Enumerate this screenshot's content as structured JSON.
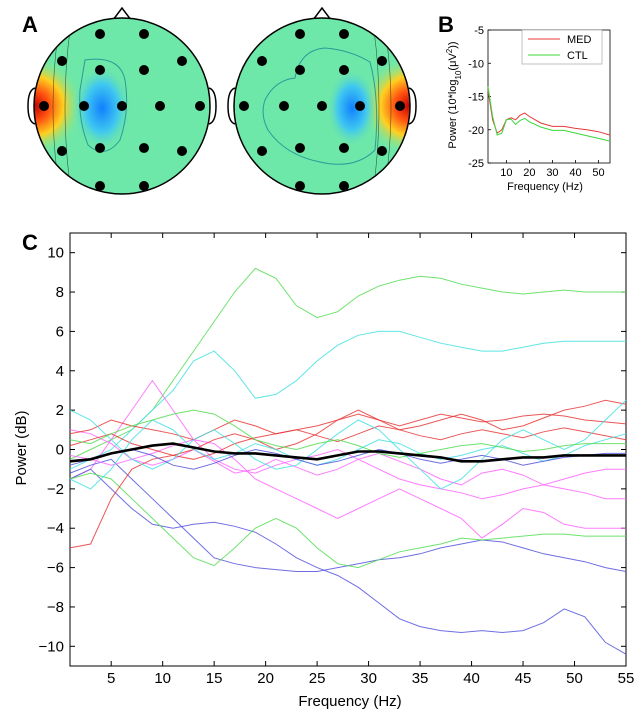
{
  "panels": {
    "A": "A",
    "B": "B",
    "C": "C"
  },
  "colors": {
    "med": "#e8393a",
    "ctl": "#38d838",
    "mean": "#000000",
    "topo_bg": "#6ee8a8"
  },
  "chart_data": [
    {
      "panel": "B",
      "type": "line",
      "xlabel": "Frequency (Hz)",
      "ylabel": "Power (10*log10(μV²))",
      "ylabel_parts": {
        "pre": "Power (10*log",
        "sub": "10",
        "mid": "(μV",
        "sup": "2",
        "post": "))"
      },
      "xlim": [
        2,
        55
      ],
      "ylim": [
        -25,
        -5
      ],
      "xticks": [
        10,
        20,
        30,
        40,
        50
      ],
      "yticks": [
        -5,
        -10,
        -15,
        -20,
        -25
      ],
      "legend_position": "top-right",
      "series": [
        {
          "name": "MED",
          "color": "#e8393a",
          "x": [
            2,
            4,
            6,
            8,
            10,
            12,
            14,
            16,
            18,
            20,
            25,
            30,
            35,
            40,
            45,
            50,
            55
          ],
          "y": [
            -14,
            -18.5,
            -20.5,
            -20,
            -18.5,
            -18.2,
            -18.5,
            -17.8,
            -17.5,
            -18,
            -19,
            -19.5,
            -19.5,
            -19.8,
            -20,
            -20.3,
            -20.8
          ]
        },
        {
          "name": "CTL",
          "color": "#38d838",
          "x": [
            2,
            4,
            6,
            8,
            10,
            12,
            14,
            16,
            18,
            20,
            25,
            30,
            35,
            40,
            45,
            50,
            55
          ],
          "y": [
            -13.5,
            -18,
            -20.8,
            -20.5,
            -18.5,
            -18.4,
            -19.2,
            -18.6,
            -18.3,
            -18.8,
            -19.6,
            -20.1,
            -20.1,
            -20.5,
            -20.9,
            -21.3,
            -21.7
          ]
        }
      ]
    },
    {
      "panel": "C",
      "type": "line",
      "xlabel": "Frequency (Hz)",
      "ylabel": "Power (dB)",
      "xlim": [
        1,
        55
      ],
      "ylim": [
        -11,
        11
      ],
      "xticks": [
        5,
        10,
        15,
        20,
        25,
        30,
        35,
        40,
        45,
        50,
        55
      ],
      "yticks": [
        10,
        8,
        6,
        4,
        2,
        0,
        -2,
        -4,
        -6,
        -8,
        -10
      ],
      "x": [
        1,
        3,
        5,
        7,
        9,
        11,
        13,
        15,
        17,
        19,
        21,
        23,
        25,
        27,
        29,
        31,
        33,
        35,
        37,
        39,
        41,
        43,
        45,
        47,
        49,
        51,
        53,
        55
      ],
      "series": [
        {
          "color": "#55dd55",
          "y": [
            -0.5,
            0.0,
            0.5,
            1.0,
            2.0,
            3.5,
            5.0,
            6.5,
            8.0,
            9.2,
            8.7,
            7.3,
            6.7,
            7.0,
            7.8,
            8.3,
            8.6,
            8.8,
            8.7,
            8.4,
            8.2,
            8.0,
            7.9,
            8.0,
            8.1,
            8.0,
            8.0,
            8.0
          ]
        },
        {
          "color": "#44e0e0",
          "y": [
            -1.0,
            -0.5,
            0.0,
            1.0,
            2.0,
            3.0,
            4.5,
            5.0,
            4.0,
            2.6,
            2.8,
            3.5,
            4.5,
            5.3,
            5.8,
            6.0,
            6.0,
            5.7,
            5.4,
            5.2,
            5.0,
            5.0,
            5.2,
            5.4,
            5.5,
            5.5,
            5.5,
            5.5
          ]
        },
        {
          "color": "#ff66ff",
          "y": [
            -1.5,
            -1.0,
            0.5,
            2.0,
            3.5,
            2.0,
            0.5,
            -0.5,
            -1.0,
            -1.2,
            -0.8,
            -0.5,
            -0.3,
            0.0,
            -0.5,
            -1.0,
            -1.5,
            -1.8,
            -2.0,
            -2.2,
            -2.5,
            -2.3,
            -2.0,
            -1.8,
            -2.0,
            -2.2,
            -2.5,
            -2.5
          ]
        },
        {
          "color": "#5555dd",
          "y": [
            -1.5,
            -1.0,
            -2.0,
            -3.0,
            -3.8,
            -4.0,
            -3.8,
            -3.7,
            -3.9,
            -4.2,
            -4.8,
            -5.5,
            -6.0,
            -6.4,
            -7.0,
            -7.8,
            -8.6,
            -9.0,
            -9.2,
            -9.3,
            -9.2,
            -9.3,
            -9.2,
            -8.8,
            -8.1,
            -8.5,
            -9.8,
            -10.4
          ]
        },
        {
          "color": "#5555dd",
          "y": [
            -1.2,
            -0.8,
            -0.5,
            -1.5,
            -2.5,
            -3.5,
            -4.5,
            -5.5,
            -5.8,
            -6.0,
            -6.1,
            -6.2,
            -6.2,
            -6.0,
            -5.8,
            -5.6,
            -5.5,
            -5.3,
            -5.0,
            -4.8,
            -4.6,
            -4.7,
            -5.0,
            -5.3,
            -5.5,
            -5.7,
            -6.0,
            -6.2
          ]
        },
        {
          "color": "#55dd55",
          "y": [
            -1.5,
            -1.2,
            -1.5,
            -2.5,
            -3.5,
            -4.5,
            -5.5,
            -5.9,
            -5.0,
            -4.0,
            -3.5,
            -4.0,
            -5.0,
            -5.8,
            -6.0,
            -5.6,
            -5.2,
            -5.0,
            -4.8,
            -4.5,
            -4.6,
            -4.5,
            -4.4,
            -4.3,
            -4.3,
            -4.4,
            -4.4,
            -4.4
          ]
        },
        {
          "color": "#ff66ff",
          "y": [
            -0.3,
            -0.5,
            -0.8,
            -0.5,
            -0.2,
            0.2,
            0.5,
            0.3,
            -0.5,
            -1.5,
            -2.0,
            -2.5,
            -3.0,
            -3.5,
            -3.0,
            -2.5,
            -2.0,
            -2.5,
            -3.0,
            -3.5,
            -4.5,
            -3.8,
            -3.0,
            -3.2,
            -3.8,
            -4.0,
            -4.0,
            -4.0
          ]
        },
        {
          "color": "#ff66ff",
          "y": [
            1.0,
            0.8,
            0.3,
            -0.5,
            -0.8,
            -0.5,
            0.0,
            -0.6,
            -1.2,
            -1.0,
            -0.5,
            -0.9,
            -1.3,
            -1.0,
            -0.5,
            -0.2,
            -0.6,
            -1.0,
            -1.5,
            -1.8,
            -1.2,
            -1.0,
            -1.3,
            -1.8,
            -1.5,
            -1.2,
            -1.0,
            -1.0
          ]
        },
        {
          "color": "#e8393a",
          "y": [
            -5.0,
            -4.8,
            -2.5,
            -1.0,
            -0.5,
            -0.3,
            0.0,
            0.5,
            0.8,
            0.5,
            0.0,
            0.3,
            0.8,
            1.5,
            2.0,
            1.5,
            1.0,
            1.2,
            1.5,
            1.8,
            1.5,
            1.0,
            1.2,
            1.6,
            2.0,
            2.2,
            2.5,
            2.3
          ]
        },
        {
          "color": "#e8393a",
          "y": [
            0.8,
            1.0,
            1.5,
            1.2,
            1.0,
            0.8,
            0.5,
            1.0,
            1.5,
            1.2,
            0.8,
            1.0,
            1.2,
            1.5,
            1.8,
            1.5,
            1.2,
            1.5,
            1.8,
            1.6,
            1.4,
            1.5,
            1.7,
            1.8,
            1.7,
            1.5,
            1.4,
            1.3
          ]
        },
        {
          "color": "#e8393a",
          "y": [
            0.2,
            0.5,
            0.8,
            0.3,
            0.0,
            -0.3,
            -0.5,
            -0.2,
            0.3,
            0.6,
            0.8,
            1.0,
            0.7,
            0.4,
            0.8,
            1.2,
            1.0,
            0.7,
            0.5,
            0.8,
            1.0,
            0.8,
            0.6,
            0.9,
            1.1,
            0.9,
            0.7,
            0.5
          ]
        },
        {
          "color": "#44e0e0",
          "y": [
            2.0,
            1.5,
            0.5,
            -0.5,
            -1.0,
            -0.5,
            0.5,
            1.0,
            0.3,
            -0.5,
            -1.0,
            -0.8,
            0.0,
            0.8,
            1.5,
            1.0,
            0.0,
            -1.0,
            -2.0,
            -1.5,
            -0.5,
            0.5,
            1.0,
            0.5,
            0.0,
            0.5,
            1.5,
            2.5
          ]
        },
        {
          "color": "#44e0e0",
          "y": [
            -1.5,
            -2.0,
            -1.0,
            0.5,
            1.5,
            1.0,
            0.0,
            -0.5,
            -0.2,
            0.3,
            0.0,
            -0.5,
            -0.8,
            -0.5,
            0.0,
            0.5,
            0.3,
            -0.2,
            -0.5,
            -0.3,
            0.0,
            0.2,
            -0.2,
            -0.6,
            -0.3,
            0.2,
            0.5,
            0.8
          ]
        },
        {
          "color": "#55dd55",
          "y": [
            0.5,
            0.3,
            0.8,
            1.2,
            1.5,
            1.8,
            2.0,
            1.8,
            1.2,
            0.5,
            0.2,
            0.0,
            0.3,
            0.5,
            0.2,
            -0.2,
            -0.4,
            -0.2,
            0.0,
            0.2,
            0.3,
            0.1,
            -0.1,
            0.0,
            0.2,
            0.3,
            0.3,
            0.3
          ]
        },
        {
          "color": "#5555dd",
          "y": [
            -0.8,
            -0.5,
            -0.2,
            0.0,
            -0.3,
            -0.8,
            -1.0,
            -0.7,
            -0.3,
            0.0,
            -0.2,
            -0.5,
            -0.8,
            -0.6,
            -0.3,
            0.0,
            -0.2,
            -0.5,
            -0.7,
            -0.5,
            -0.3,
            -0.5,
            -0.8,
            -0.6,
            -0.4,
            -0.3,
            -0.2,
            -0.2
          ]
        },
        {
          "color": "#000000",
          "mean": true,
          "y": [
            -0.6,
            -0.5,
            -0.2,
            0.0,
            0.2,
            0.3,
            0.1,
            -0.1,
            -0.2,
            -0.2,
            -0.3,
            -0.4,
            -0.5,
            -0.3,
            -0.1,
            -0.1,
            -0.2,
            -0.3,
            -0.4,
            -0.6,
            -0.6,
            -0.5,
            -0.4,
            -0.4,
            -0.3,
            -0.3,
            -0.3,
            -0.3
          ]
        }
      ]
    }
  ]
}
